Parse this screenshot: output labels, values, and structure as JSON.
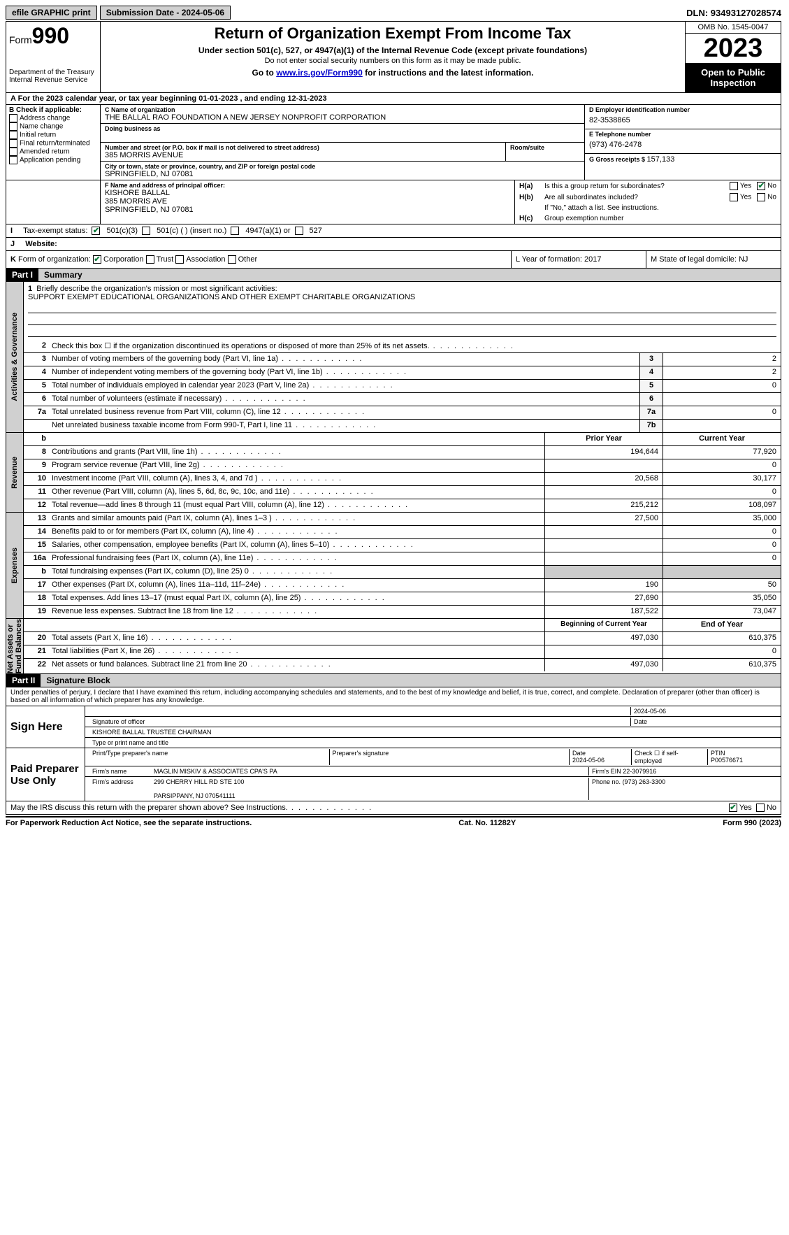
{
  "topbar": {
    "efile": "efile GRAPHIC print",
    "subdate_label": "Submission Date - 2024-05-06",
    "dln": "DLN: 93493127028574"
  },
  "header": {
    "form_word": "Form",
    "form_num": "990",
    "dept": "Department of the Treasury\nInternal Revenue Service",
    "title": "Return of Organization Exempt From Income Tax",
    "sub": "Under section 501(c), 527, or 4947(a)(1) of the Internal Revenue Code (except private foundations)",
    "sub2": "Do not enter social security numbers on this form as it may be made public.",
    "goto_pre": "Go to ",
    "goto_link": "www.irs.gov/Form990",
    "goto_post": " for instructions and the latest information.",
    "omb": "OMB No. 1545-0047",
    "year": "2023",
    "open": "Open to Public Inspection"
  },
  "taxyear": {
    "pre": "A For the 2023 calendar year, or tax year beginning ",
    "begin": "01-01-2023",
    "mid": " , and ending ",
    "end": "12-31-2023"
  },
  "boxB": {
    "title": "B Check if applicable:",
    "items": [
      "Address change",
      "Name change",
      "Initial return",
      "Final return/terminated",
      "Amended return",
      "Application pending"
    ]
  },
  "boxC": {
    "name_lbl": "C Name of organization",
    "name": "THE BALLAL RAO FOUNDATION A NEW JERSEY NONPROFIT CORPORATION",
    "dba_lbl": "Doing business as",
    "street_lbl": "Number and street (or P.O. box if mail is not delivered to street address)",
    "room_lbl": "Room/suite",
    "street": "385 MORRIS AVENUE",
    "city_lbl": "City or town, state or province, country, and ZIP or foreign postal code",
    "city": "SPRINGFIELD, NJ  07081"
  },
  "boxD": {
    "lbl": "D Employer identification number",
    "val": "82-3538865"
  },
  "boxE": {
    "lbl": "E Telephone number",
    "val": "(973) 476-2478"
  },
  "boxG": {
    "lbl": "G Gross receipts $ ",
    "val": "157,133"
  },
  "boxF": {
    "lbl": "F Name and address of principal officer:",
    "name": "KISHORE BALLAL",
    "addr1": "385 MORRIS AVE",
    "addr2": "SPRINGFIELD, NJ  07081"
  },
  "boxH": {
    "a_lbl": "H(a)",
    "a_txt": "Is this a group return for subordinates?",
    "yes": "Yes",
    "no": "No",
    "b_lbl": "H(b)",
    "b_txt": "Are all subordinates included?",
    "b_note": "If \"No,\" attach a list. See instructions.",
    "c_lbl": "H(c)",
    "c_txt": "Group exemption number"
  },
  "rowI": {
    "lbl": "I",
    "txt": "Tax-exempt status:",
    "o1": "501(c)(3)",
    "o2": "501(c) (  ) (insert no.)",
    "o3": "4947(a)(1) or",
    "o4": "527"
  },
  "rowJ": {
    "lbl": "J",
    "txt": "Website:"
  },
  "rowK": {
    "lbl": "K",
    "txt": "Form of organization:",
    "o1": "Corporation",
    "o2": "Trust",
    "o3": "Association",
    "o4": "Other",
    "L": "L Year of formation: 2017",
    "M": "M State of legal domicile: NJ"
  },
  "part1": {
    "hdr": "Part I",
    "title": "Summary"
  },
  "mission": {
    "num": "1",
    "lbl": "Briefly describe the organization's mission or most significant activities:",
    "txt": "SUPPORT EXEMPT EDUCATIONAL ORGANIZATIONS AND OTHER EXEMPT CHARITABLE ORGANIZATIONS"
  },
  "gov_rows": [
    {
      "n": "2",
      "d": "Check this box ☐ if the organization discontinued its operations or disposed of more than 25% of its net assets."
    },
    {
      "n": "3",
      "d": "Number of voting members of the governing body (Part VI, line 1a)",
      "box": "3",
      "v": "2"
    },
    {
      "n": "4",
      "d": "Number of independent voting members of the governing body (Part VI, line 1b)",
      "box": "4",
      "v": "2"
    },
    {
      "n": "5",
      "d": "Total number of individuals employed in calendar year 2023 (Part V, line 2a)",
      "box": "5",
      "v": "0"
    },
    {
      "n": "6",
      "d": "Total number of volunteers (estimate if necessary)",
      "box": "6",
      "v": ""
    },
    {
      "n": "7a",
      "d": "Total unrelated business revenue from Part VIII, column (C), line 12",
      "box": "7a",
      "v": "0"
    },
    {
      "n": "",
      "d": "Net unrelated business taxable income from Form 990-T, Part I, line 11",
      "box": "7b",
      "v": ""
    }
  ],
  "rev_head": {
    "n": "b",
    "prior": "Prior Year",
    "curr": "Current Year"
  },
  "rev_rows": [
    {
      "n": "8",
      "d": "Contributions and grants (Part VIII, line 1h)",
      "p": "194,644",
      "c": "77,920"
    },
    {
      "n": "9",
      "d": "Program service revenue (Part VIII, line 2g)",
      "p": "",
      "c": "0"
    },
    {
      "n": "10",
      "d": "Investment income (Part VIII, column (A), lines 3, 4, and 7d )",
      "p": "20,568",
      "c": "30,177"
    },
    {
      "n": "11",
      "d": "Other revenue (Part VIII, column (A), lines 5, 6d, 8c, 9c, 10c, and 11e)",
      "p": "",
      "c": "0"
    },
    {
      "n": "12",
      "d": "Total revenue—add lines 8 through 11 (must equal Part VIII, column (A), line 12)",
      "p": "215,212",
      "c": "108,097"
    }
  ],
  "exp_rows": [
    {
      "n": "13",
      "d": "Grants and similar amounts paid (Part IX, column (A), lines 1–3 )",
      "p": "27,500",
      "c": "35,000"
    },
    {
      "n": "14",
      "d": "Benefits paid to or for members (Part IX, column (A), line 4)",
      "p": "",
      "c": "0"
    },
    {
      "n": "15",
      "d": "Salaries, other compensation, employee benefits (Part IX, column (A), lines 5–10)",
      "p": "",
      "c": "0"
    },
    {
      "n": "16a",
      "d": "Professional fundraising fees (Part IX, column (A), line 11e)",
      "p": "",
      "c": "0"
    },
    {
      "n": "b",
      "d": "Total fundraising expenses (Part IX, column (D), line 25) 0",
      "p": "shade",
      "c": "shade"
    },
    {
      "n": "17",
      "d": "Other expenses (Part IX, column (A), lines 11a–11d, 11f–24e)",
      "p": "190",
      "c": "50"
    },
    {
      "n": "18",
      "d": "Total expenses. Add lines 13–17 (must equal Part IX, column (A), line 25)",
      "p": "27,690",
      "c": "35,050"
    },
    {
      "n": "19",
      "d": "Revenue less expenses. Subtract line 18 from line 12",
      "p": "187,522",
      "c": "73,047"
    }
  ],
  "net_head": {
    "prior": "Beginning of Current Year",
    "curr": "End of Year"
  },
  "net_rows": [
    {
      "n": "20",
      "d": "Total assets (Part X, line 16)",
      "p": "497,030",
      "c": "610,375"
    },
    {
      "n": "21",
      "d": "Total liabilities (Part X, line 26)",
      "p": "",
      "c": "0"
    },
    {
      "n": "22",
      "d": "Net assets or fund balances. Subtract line 21 from line 20",
      "p": "497,030",
      "c": "610,375"
    }
  ],
  "vtabs": {
    "gov": "Activities & Governance",
    "rev": "Revenue",
    "exp": "Expenses",
    "net": "Net Assets or\nFund Balances"
  },
  "part2": {
    "hdr": "Part II",
    "title": "Signature Block",
    "decl": "Under penalties of perjury, I declare that I have examined this return, including accompanying schedules and statements, and to the best of my knowledge and belief, it is true, correct, and complete. Declaration of preparer (other than officer) is based on all information of which preparer has any knowledge."
  },
  "sign": {
    "here": "Sign Here",
    "sig_lbl": "Signature of officer",
    "date_lbl": "Date",
    "date": "2024-05-06",
    "name": "KISHORE BALLAL TRUSTEE CHAIRMAN",
    "name_lbl": "Type or print name and title"
  },
  "paid": {
    "lbl": "Paid Preparer Use Only",
    "h1": "Print/Type preparer's name",
    "h2": "Preparer's signature",
    "h3": "Date",
    "h3v": "2024-05-06",
    "h4": "Check ☐ if self-employed",
    "h5": "PTIN",
    "h5v": "P00576671",
    "firm_lbl": "Firm's name",
    "firm": "MAGLIN MISKIV & ASSOCIATES CPA'S PA",
    "ein_lbl": "Firm's EIN",
    "ein": "22-3079916",
    "addr_lbl": "Firm's address",
    "addr": "299 CHERRY HILL RD STE 100\n\nPARSIPPANY, NJ  070541111",
    "phone_lbl": "Phone no.",
    "phone": "(973) 263-3300"
  },
  "discuss": {
    "txt": "May the IRS discuss this return with the preparer shown above? See Instructions.",
    "yes": "Yes",
    "no": "No"
  },
  "footer": {
    "l": "For Paperwork Reduction Act Notice, see the separate instructions.",
    "m": "Cat. No. 11282Y",
    "r": "Form 990 (2023)"
  }
}
